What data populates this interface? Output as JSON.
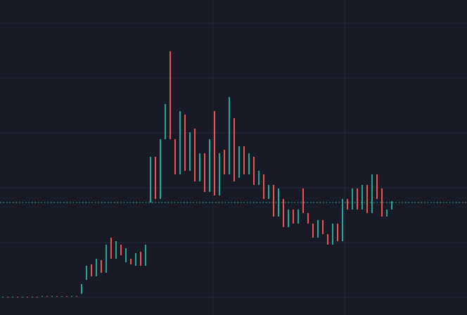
{
  "chart_data": {
    "type": "candlestick",
    "x": [
      0,
      1,
      2,
      3,
      4,
      5,
      6,
      7,
      8,
      9,
      10,
      11,
      12,
      13,
      14,
      15,
      16,
      17,
      18,
      19,
      20,
      21,
      22,
      23,
      24,
      25,
      26,
      27,
      28,
      29,
      30,
      31,
      32,
      33,
      34,
      35,
      36,
      37,
      38,
      39,
      40,
      41,
      42,
      43,
      44,
      45,
      46,
      47,
      48,
      49,
      50,
      51,
      52,
      53,
      54,
      55,
      56,
      57,
      58,
      59,
      60,
      61,
      62,
      63,
      64,
      65,
      66,
      67,
      68,
      69,
      70,
      71,
      72,
      73,
      74,
      75,
      76,
      77,
      78,
      79
    ],
    "open": [
      25,
      26,
      25,
      26,
      25,
      26,
      25,
      26,
      26,
      27,
      26,
      27,
      26,
      27,
      26,
      27,
      30,
      50,
      72,
      55,
      78,
      60,
      110,
      80,
      100,
      75,
      80,
      70,
      90,
      70,
      160,
      225,
      165,
      250,
      375,
      250,
      200,
      285,
      205,
      265,
      190,
      230,
      175,
      290,
      170,
      235,
      200,
      280,
      195,
      240,
      200,
      225,
      185,
      200,
      165,
      185,
      140,
      165,
      125,
      150,
      130,
      180,
      145,
      130,
      110,
      135,
      115,
      100,
      130,
      105,
      165,
      150,
      180,
      150,
      185,
      145,
      200,
      180,
      140,
      150
    ],
    "close": [
      26,
      25,
      26,
      25,
      26,
      25,
      26,
      25,
      27,
      26,
      27,
      26,
      27,
      26,
      27,
      26,
      44,
      70,
      55,
      80,
      60,
      100,
      80,
      105,
      85,
      95,
      72,
      88,
      70,
      100,
      225,
      165,
      250,
      300,
      250,
      200,
      290,
      205,
      260,
      190,
      230,
      175,
      250,
      170,
      230,
      200,
      310,
      190,
      240,
      200,
      230,
      185,
      205,
      165,
      185,
      140,
      180,
      125,
      150,
      130,
      150,
      145,
      130,
      110,
      135,
      115,
      100,
      130,
      105,
      165,
      150,
      180,
      150,
      185,
      145,
      200,
      165,
      140,
      150,
      162
    ],
    "up_color": "#26a69a",
    "down_color": "#ef5350",
    "xlim": [
      -0.5714,
      94.2857
    ],
    "xticks": [
      42.71,
      69.43
    ],
    "ylim": [
      0,
      448
    ],
    "yticks": [
      25,
      103,
      181,
      259,
      337,
      415
    ],
    "grid": true,
    "price_line": 160
  }
}
